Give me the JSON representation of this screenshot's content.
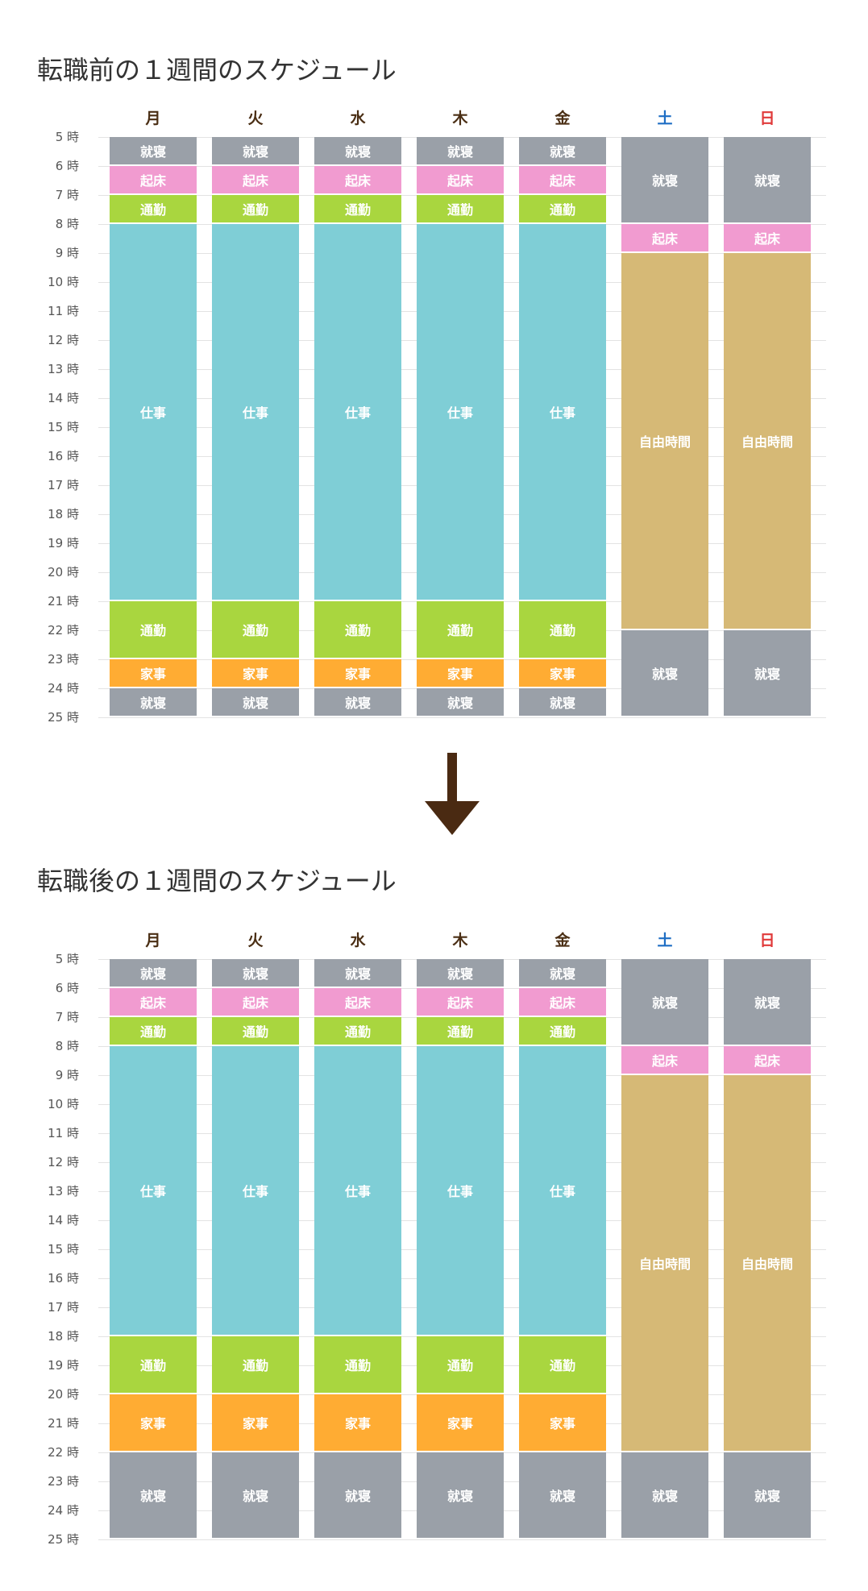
{
  "days": [
    "月",
    "火",
    "水",
    "木",
    "金",
    "土",
    "日"
  ],
  "day_colors": [
    "#4a2e14",
    "#4a2e14",
    "#4a2e14",
    "#4a2e14",
    "#4a2e14",
    "#1f6ec4",
    "#e03a3a"
  ],
  "hours": [
    "5 時",
    "6 時",
    "7 時",
    "8 時",
    "9 時",
    "10 時",
    "11 時",
    "12 時",
    "13 時",
    "14 時",
    "15 時",
    "16 時",
    "17 時",
    "18 時",
    "19 時",
    "20 時",
    "21 時",
    "22 時",
    "23 時",
    "24 時",
    "25 時"
  ],
  "activity_colors": {
    "就寝": "#9aa0a8",
    "起床": "#f19bd0",
    "通勤": "#a9d63f",
    "仕事": "#7fced6",
    "家事": "#ffac33",
    "自由時間": "#d6b976"
  },
  "arrow_color": "#4a2a12",
  "schedules": [
    {
      "title": "転職前の１週間のスケジュール",
      "days": [
        [
          {
            "label": "就寝",
            "start": 5,
            "end": 6
          },
          {
            "label": "起床",
            "start": 6,
            "end": 7
          },
          {
            "label": "通勤",
            "start": 7,
            "end": 8
          },
          {
            "label": "仕事",
            "start": 8,
            "end": 21
          },
          {
            "label": "通勤",
            "start": 21,
            "end": 23
          },
          {
            "label": "家事",
            "start": 23,
            "end": 24
          },
          {
            "label": "就寝",
            "start": 24,
            "end": 25
          }
        ],
        [
          {
            "label": "就寝",
            "start": 5,
            "end": 6
          },
          {
            "label": "起床",
            "start": 6,
            "end": 7
          },
          {
            "label": "通勤",
            "start": 7,
            "end": 8
          },
          {
            "label": "仕事",
            "start": 8,
            "end": 21
          },
          {
            "label": "通勤",
            "start": 21,
            "end": 23
          },
          {
            "label": "家事",
            "start": 23,
            "end": 24
          },
          {
            "label": "就寝",
            "start": 24,
            "end": 25
          }
        ],
        [
          {
            "label": "就寝",
            "start": 5,
            "end": 6
          },
          {
            "label": "起床",
            "start": 6,
            "end": 7
          },
          {
            "label": "通勤",
            "start": 7,
            "end": 8
          },
          {
            "label": "仕事",
            "start": 8,
            "end": 21
          },
          {
            "label": "通勤",
            "start": 21,
            "end": 23
          },
          {
            "label": "家事",
            "start": 23,
            "end": 24
          },
          {
            "label": "就寝",
            "start": 24,
            "end": 25
          }
        ],
        [
          {
            "label": "就寝",
            "start": 5,
            "end": 6
          },
          {
            "label": "起床",
            "start": 6,
            "end": 7
          },
          {
            "label": "通勤",
            "start": 7,
            "end": 8
          },
          {
            "label": "仕事",
            "start": 8,
            "end": 21
          },
          {
            "label": "通勤",
            "start": 21,
            "end": 23
          },
          {
            "label": "家事",
            "start": 23,
            "end": 24
          },
          {
            "label": "就寝",
            "start": 24,
            "end": 25
          }
        ],
        [
          {
            "label": "就寝",
            "start": 5,
            "end": 6
          },
          {
            "label": "起床",
            "start": 6,
            "end": 7
          },
          {
            "label": "通勤",
            "start": 7,
            "end": 8
          },
          {
            "label": "仕事",
            "start": 8,
            "end": 21
          },
          {
            "label": "通勤",
            "start": 21,
            "end": 23
          },
          {
            "label": "家事",
            "start": 23,
            "end": 24
          },
          {
            "label": "就寝",
            "start": 24,
            "end": 25
          }
        ],
        [
          {
            "label": "就寝",
            "start": 5,
            "end": 8
          },
          {
            "label": "起床",
            "start": 8,
            "end": 9
          },
          {
            "label": "自由時間",
            "start": 9,
            "end": 22
          },
          {
            "label": "就寝",
            "start": 22,
            "end": 25
          }
        ],
        [
          {
            "label": "就寝",
            "start": 5,
            "end": 8
          },
          {
            "label": "起床",
            "start": 8,
            "end": 9
          },
          {
            "label": "自由時間",
            "start": 9,
            "end": 22
          },
          {
            "label": "就寝",
            "start": 22,
            "end": 25
          }
        ]
      ]
    },
    {
      "title": "転職後の１週間のスケジュール",
      "days": [
        [
          {
            "label": "就寝",
            "start": 5,
            "end": 6
          },
          {
            "label": "起床",
            "start": 6,
            "end": 7
          },
          {
            "label": "通勤",
            "start": 7,
            "end": 8
          },
          {
            "label": "仕事",
            "start": 8,
            "end": 18
          },
          {
            "label": "通勤",
            "start": 18,
            "end": 20
          },
          {
            "label": "家事",
            "start": 20,
            "end": 22
          },
          {
            "label": "就寝",
            "start": 22,
            "end": 25
          }
        ],
        [
          {
            "label": "就寝",
            "start": 5,
            "end": 6
          },
          {
            "label": "起床",
            "start": 6,
            "end": 7
          },
          {
            "label": "通勤",
            "start": 7,
            "end": 8
          },
          {
            "label": "仕事",
            "start": 8,
            "end": 18
          },
          {
            "label": "通勤",
            "start": 18,
            "end": 20
          },
          {
            "label": "家事",
            "start": 20,
            "end": 22
          },
          {
            "label": "就寝",
            "start": 22,
            "end": 25
          }
        ],
        [
          {
            "label": "就寝",
            "start": 5,
            "end": 6
          },
          {
            "label": "起床",
            "start": 6,
            "end": 7
          },
          {
            "label": "通勤",
            "start": 7,
            "end": 8
          },
          {
            "label": "仕事",
            "start": 8,
            "end": 18
          },
          {
            "label": "通勤",
            "start": 18,
            "end": 20
          },
          {
            "label": "家事",
            "start": 20,
            "end": 22
          },
          {
            "label": "就寝",
            "start": 22,
            "end": 25
          }
        ],
        [
          {
            "label": "就寝",
            "start": 5,
            "end": 6
          },
          {
            "label": "起床",
            "start": 6,
            "end": 7
          },
          {
            "label": "通勤",
            "start": 7,
            "end": 8
          },
          {
            "label": "仕事",
            "start": 8,
            "end": 18
          },
          {
            "label": "通勤",
            "start": 18,
            "end": 20
          },
          {
            "label": "家事",
            "start": 20,
            "end": 22
          },
          {
            "label": "就寝",
            "start": 22,
            "end": 25
          }
        ],
        [
          {
            "label": "就寝",
            "start": 5,
            "end": 6
          },
          {
            "label": "起床",
            "start": 6,
            "end": 7
          },
          {
            "label": "通勤",
            "start": 7,
            "end": 8
          },
          {
            "label": "仕事",
            "start": 8,
            "end": 18
          },
          {
            "label": "通勤",
            "start": 18,
            "end": 20
          },
          {
            "label": "家事",
            "start": 20,
            "end": 22
          },
          {
            "label": "就寝",
            "start": 22,
            "end": 25
          }
        ],
        [
          {
            "label": "就寝",
            "start": 5,
            "end": 8
          },
          {
            "label": "起床",
            "start": 8,
            "end": 9
          },
          {
            "label": "自由時間",
            "start": 9,
            "end": 22
          },
          {
            "label": "就寝",
            "start": 22,
            "end": 25
          }
        ],
        [
          {
            "label": "就寝",
            "start": 5,
            "end": 8
          },
          {
            "label": "起床",
            "start": 8,
            "end": 9
          },
          {
            "label": "自由時間",
            "start": 9,
            "end": 22
          },
          {
            "label": "就寝",
            "start": 22,
            "end": 25
          }
        ]
      ]
    }
  ]
}
